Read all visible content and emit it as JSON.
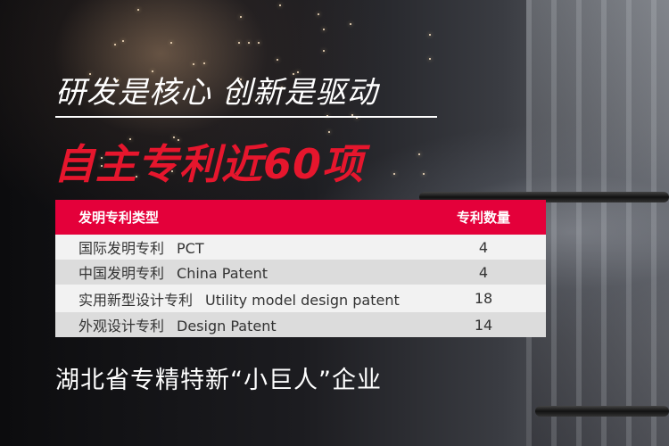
{
  "banner": {
    "slogan": "研发是核心 创新是驱动",
    "headline": "自主专利近60项",
    "footer": "湖北省专精特新“小巨人”企业"
  },
  "colors": {
    "accent": "#e4003a",
    "headline": "#e6162d"
  },
  "table": {
    "headers": [
      "发明专利类型",
      "专利数量"
    ],
    "rows": [
      {
        "cn": "国际发明专利",
        "en": "PCT",
        "count": "4"
      },
      {
        "cn": "中国发明专利",
        "en": "China Patent",
        "count": "4"
      },
      {
        "cn": "实用新型设计专利",
        "en": "Utility model design patent",
        "count": "18"
      },
      {
        "cn": "外观设计专利",
        "en": "Design Patent",
        "count": "14"
      }
    ]
  }
}
